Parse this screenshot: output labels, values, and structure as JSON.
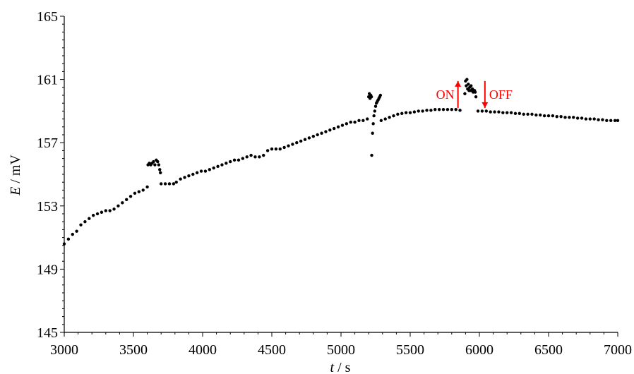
{
  "chart_data": {
    "type": "scatter",
    "title": "",
    "xlabel": {
      "var": "t",
      "unit": " / s"
    },
    "ylabel": {
      "var": "E",
      "unit": " / mV"
    },
    "xlim": [
      3000,
      7000
    ],
    "ylim": [
      145,
      165
    ],
    "x_ticks": [
      "3000",
      "3500",
      "4000",
      "4500",
      "5000",
      "5500",
      "6000",
      "6500",
      "7000"
    ],
    "y_ticks": [
      "145",
      "149",
      "153",
      "157",
      "161",
      "165"
    ],
    "grid": false,
    "legend": "none",
    "marker_color": "#000000",
    "annotation_color": "#ff0000",
    "annotations": [
      {
        "id": "on",
        "text": "ON",
        "x": 5845,
        "arrow_dir": "up",
        "y_from": 159.2,
        "y_to": 160.9
      },
      {
        "id": "off",
        "text": "OFF",
        "x": 6040,
        "arrow_dir": "down",
        "y_from": 160.9,
        "y_to": 159.2
      }
    ],
    "series": [
      {
        "values": [
          [
            3000,
            150.6
          ],
          [
            3030,
            150.9
          ],
          [
            3060,
            151.2
          ],
          [
            3090,
            151.4
          ],
          [
            3120,
            151.8
          ],
          [
            3150,
            152.0
          ],
          [
            3180,
            152.2
          ],
          [
            3210,
            152.4
          ],
          [
            3240,
            152.5
          ],
          [
            3270,
            152.6
          ],
          [
            3300,
            152.7
          ],
          [
            3330,
            152.7
          ],
          [
            3360,
            152.8
          ],
          [
            3390,
            153.0
          ],
          [
            3420,
            153.2
          ],
          [
            3450,
            153.4
          ],
          [
            3480,
            153.6
          ],
          [
            3510,
            153.8
          ],
          [
            3540,
            153.9
          ],
          [
            3570,
            154.0
          ],
          [
            3600,
            154.2
          ]
        ]
      },
      {
        "values": [
          [
            3605,
            155.6
          ],
          [
            3615,
            155.7
          ],
          [
            3625,
            155.6
          ],
          [
            3635,
            155.7
          ],
          [
            3645,
            155.8
          ],
          [
            3655,
            155.6
          ],
          [
            3665,
            155.9
          ],
          [
            3675,
            155.8
          ],
          [
            3683,
            155.6
          ],
          [
            3690,
            155.3
          ],
          [
            3695,
            155.1
          ]
        ]
      },
      {
        "values": [
          [
            3700,
            154.4
          ],
          [
            3730,
            154.4
          ],
          [
            3760,
            154.4
          ],
          [
            3790,
            154.4
          ],
          [
            3810,
            154.5
          ],
          [
            3840,
            154.7
          ],
          [
            3870,
            154.8
          ],
          [
            3900,
            154.9
          ],
          [
            3930,
            155.0
          ],
          [
            3960,
            155.1
          ],
          [
            3990,
            155.2
          ],
          [
            4020,
            155.2
          ],
          [
            4050,
            155.3
          ],
          [
            4080,
            155.4
          ],
          [
            4110,
            155.5
          ],
          [
            4140,
            155.6
          ],
          [
            4170,
            155.7
          ],
          [
            4200,
            155.8
          ],
          [
            4230,
            155.9
          ],
          [
            4260,
            155.9
          ],
          [
            4290,
            156.0
          ],
          [
            4320,
            156.1
          ],
          [
            4350,
            156.2
          ],
          [
            4380,
            156.1
          ],
          [
            4410,
            156.1
          ],
          [
            4440,
            156.2
          ],
          [
            4470,
            156.5
          ],
          [
            4500,
            156.6
          ],
          [
            4530,
            156.6
          ],
          [
            4560,
            156.6
          ],
          [
            4590,
            156.7
          ],
          [
            4620,
            156.8
          ],
          [
            4650,
            156.9
          ],
          [
            4680,
            157.0
          ],
          [
            4710,
            157.1
          ],
          [
            4740,
            157.2
          ],
          [
            4770,
            157.3
          ],
          [
            4800,
            157.4
          ],
          [
            4830,
            157.5
          ],
          [
            4860,
            157.6
          ],
          [
            4890,
            157.7
          ],
          [
            4920,
            157.8
          ],
          [
            4950,
            157.9
          ],
          [
            4980,
            158.0
          ],
          [
            5010,
            158.1
          ],
          [
            5040,
            158.2
          ],
          [
            5070,
            158.3
          ],
          [
            5100,
            158.3
          ],
          [
            5130,
            158.4
          ],
          [
            5160,
            158.4
          ],
          [
            5190,
            158.5
          ]
        ]
      },
      {
        "values": [
          [
            5200,
            159.9
          ],
          [
            5205,
            160.1
          ],
          [
            5210,
            159.8
          ],
          [
            5215,
            160.0
          ],
          [
            5220,
            159.9
          ],
          [
            5222,
            156.2
          ],
          [
            5228,
            157.6
          ],
          [
            5233,
            158.2
          ],
          [
            5238,
            158.7
          ],
          [
            5244,
            159.0
          ],
          [
            5250,
            159.3
          ],
          [
            5256,
            159.5
          ],
          [
            5262,
            159.6
          ],
          [
            5268,
            159.7
          ],
          [
            5274,
            159.8
          ],
          [
            5280,
            159.9
          ],
          [
            5285,
            160.0
          ]
        ]
      },
      {
        "values": [
          [
            5290,
            158.4
          ],
          [
            5320,
            158.5
          ],
          [
            5350,
            158.6
          ],
          [
            5380,
            158.7
          ],
          [
            5410,
            158.8
          ],
          [
            5440,
            158.85
          ],
          [
            5470,
            158.9
          ],
          [
            5500,
            158.9
          ],
          [
            5530,
            158.95
          ],
          [
            5560,
            159.0
          ],
          [
            5590,
            159.0
          ],
          [
            5620,
            159.05
          ],
          [
            5650,
            159.05
          ],
          [
            5680,
            159.1
          ],
          [
            5710,
            159.1
          ],
          [
            5740,
            159.1
          ],
          [
            5770,
            159.1
          ],
          [
            5800,
            159.1
          ],
          [
            5830,
            159.1
          ],
          [
            5860,
            159.05
          ]
        ]
      },
      {
        "values": [
          [
            5895,
            160.1
          ],
          [
            5900,
            160.9
          ],
          [
            5905,
            160.6
          ],
          [
            5910,
            161.0
          ],
          [
            5915,
            160.4
          ],
          [
            5920,
            160.7
          ],
          [
            5925,
            160.3
          ],
          [
            5930,
            160.5
          ],
          [
            5935,
            160.3
          ],
          [
            5940,
            160.6
          ],
          [
            5945,
            160.3
          ],
          [
            5950,
            160.4
          ],
          [
            5955,
            160.2
          ],
          [
            5960,
            160.3
          ],
          [
            5965,
            160.3
          ],
          [
            5970,
            160.2
          ],
          [
            5975,
            159.9
          ]
        ]
      },
      {
        "values": [
          [
            5990,
            159.0
          ],
          [
            6020,
            159.0
          ],
          [
            6050,
            159.0
          ],
          [
            6080,
            158.95
          ],
          [
            6110,
            158.95
          ],
          [
            6140,
            158.95
          ],
          [
            6170,
            158.9
          ],
          [
            6200,
            158.9
          ],
          [
            6230,
            158.9
          ],
          [
            6260,
            158.85
          ],
          [
            6290,
            158.85
          ],
          [
            6320,
            158.8
          ],
          [
            6350,
            158.8
          ],
          [
            6380,
            158.8
          ],
          [
            6410,
            158.75
          ],
          [
            6440,
            158.75
          ],
          [
            6470,
            158.7
          ],
          [
            6500,
            158.7
          ],
          [
            6530,
            158.7
          ],
          [
            6560,
            158.65
          ],
          [
            6590,
            158.65
          ],
          [
            6620,
            158.6
          ],
          [
            6650,
            158.6
          ],
          [
            6680,
            158.6
          ],
          [
            6710,
            158.55
          ],
          [
            6740,
            158.55
          ],
          [
            6770,
            158.5
          ],
          [
            6800,
            158.5
          ],
          [
            6830,
            158.5
          ],
          [
            6860,
            158.45
          ],
          [
            6890,
            158.45
          ],
          [
            6920,
            158.4
          ],
          [
            6950,
            158.4
          ],
          [
            6980,
            158.4
          ],
          [
            7000,
            158.4
          ]
        ]
      }
    ]
  }
}
